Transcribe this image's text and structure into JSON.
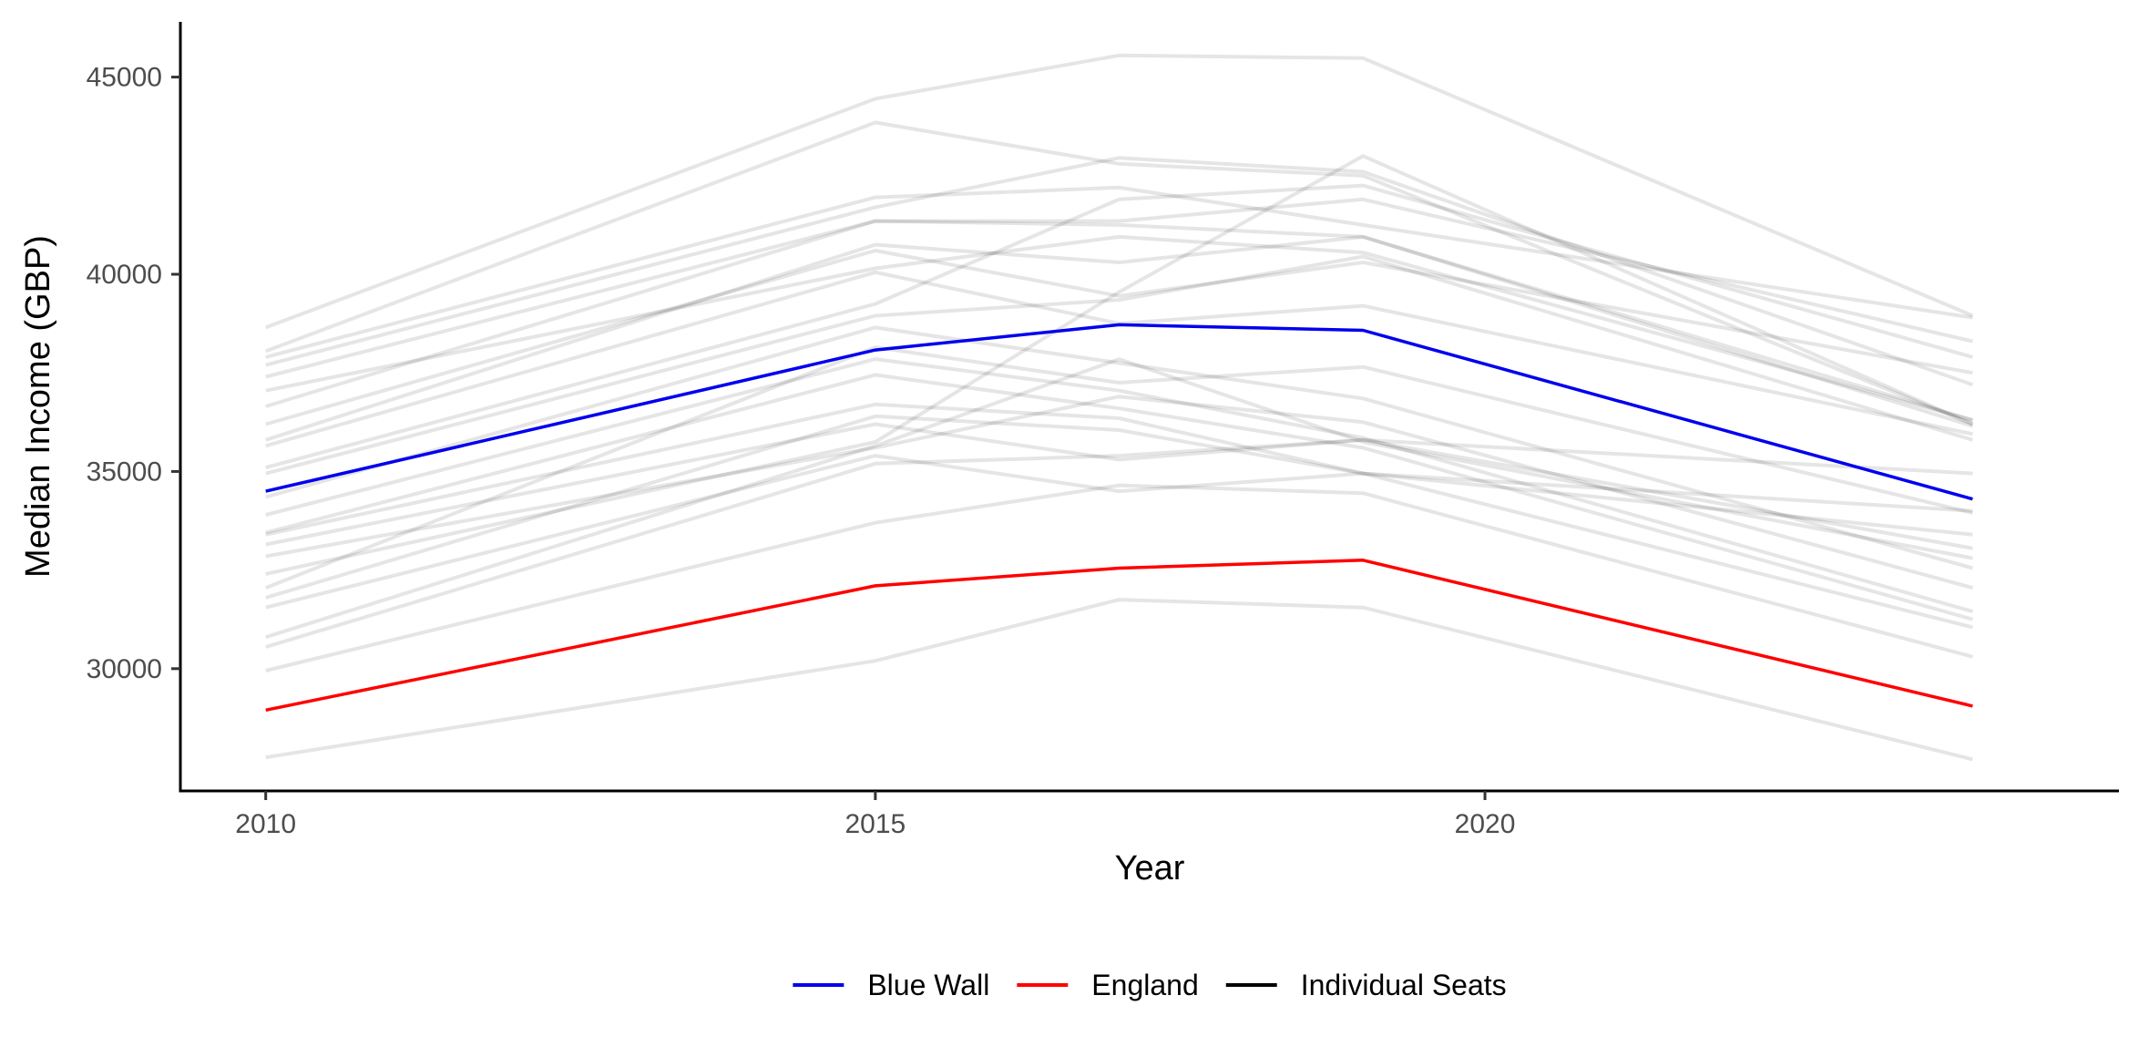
{
  "chart_data": {
    "type": "line",
    "title": "",
    "xlabel": "Year",
    "ylabel": "Median Income (GBP)",
    "x": [
      2010,
      2015,
      2017,
      2019,
      2024
    ],
    "xlim": [
      2009.3,
      2025.2
    ],
    "ylim": [
      26900,
      46400
    ],
    "x_ticks": [
      2010,
      2015,
      2020
    ],
    "y_ticks": [
      30000,
      35000,
      40000,
      45000
    ],
    "grid": false,
    "legend_position": "bottom",
    "series": [
      {
        "name": "Blue Wall",
        "color": "#0000ee",
        "role": "highlight",
        "values": [
          34500,
          38080,
          38720,
          38580,
          34300
        ]
      },
      {
        "name": "England",
        "color": "#ff0000",
        "role": "highlight",
        "values": [
          28950,
          32100,
          32550,
          32750,
          29050
        ]
      },
      {
        "name": "Individual Seats",
        "color": "#000000",
        "role": "background",
        "lines": [
          [
            38650,
            44450,
            45550,
            45480,
            38950
          ],
          [
            38050,
            43850,
            42800,
            42500,
            36200
          ],
          [
            37900,
            41950,
            42200,
            41250,
            38900
          ],
          [
            37700,
            41700,
            42950,
            42600,
            37200
          ],
          [
            37400,
            41350,
            41350,
            41900,
            38300
          ],
          [
            37050,
            40150,
            40950,
            40550,
            36300
          ],
          [
            36650,
            41350,
            41250,
            40950,
            36300
          ],
          [
            36200,
            40600,
            39450,
            40300,
            37500
          ],
          [
            35800,
            40750,
            40300,
            40950,
            36150
          ],
          [
            35650,
            40050,
            38750,
            39200,
            35950
          ],
          [
            35100,
            39250,
            41900,
            42250,
            37900
          ],
          [
            34950,
            38950,
            39350,
            40450,
            35800
          ],
          [
            34350,
            38650,
            37750,
            36850,
            32550
          ],
          [
            33900,
            37850,
            37050,
            35850,
            31450
          ],
          [
            33450,
            37450,
            36600,
            35600,
            31250
          ],
          [
            33400,
            36700,
            36350,
            34950,
            31050
          ],
          [
            33150,
            36200,
            35300,
            35800,
            34950
          ],
          [
            32850,
            35600,
            36900,
            36250,
            32050
          ],
          [
            32400,
            35750,
            39550,
            43000,
            36200
          ],
          [
            32050,
            38150,
            37250,
            37650,
            33950
          ],
          [
            31800,
            36400,
            36050,
            34950,
            33400
          ],
          [
            31550,
            35400,
            34500,
            34950,
            34000
          ],
          [
            30800,
            35650,
            37850,
            35750,
            32800
          ],
          [
            30550,
            35200,
            35400,
            35800,
            33050
          ],
          [
            29950,
            33700,
            34650,
            34450,
            30300
          ],
          [
            27750,
            30200,
            31750,
            31550,
            27700
          ]
        ]
      }
    ]
  }
}
